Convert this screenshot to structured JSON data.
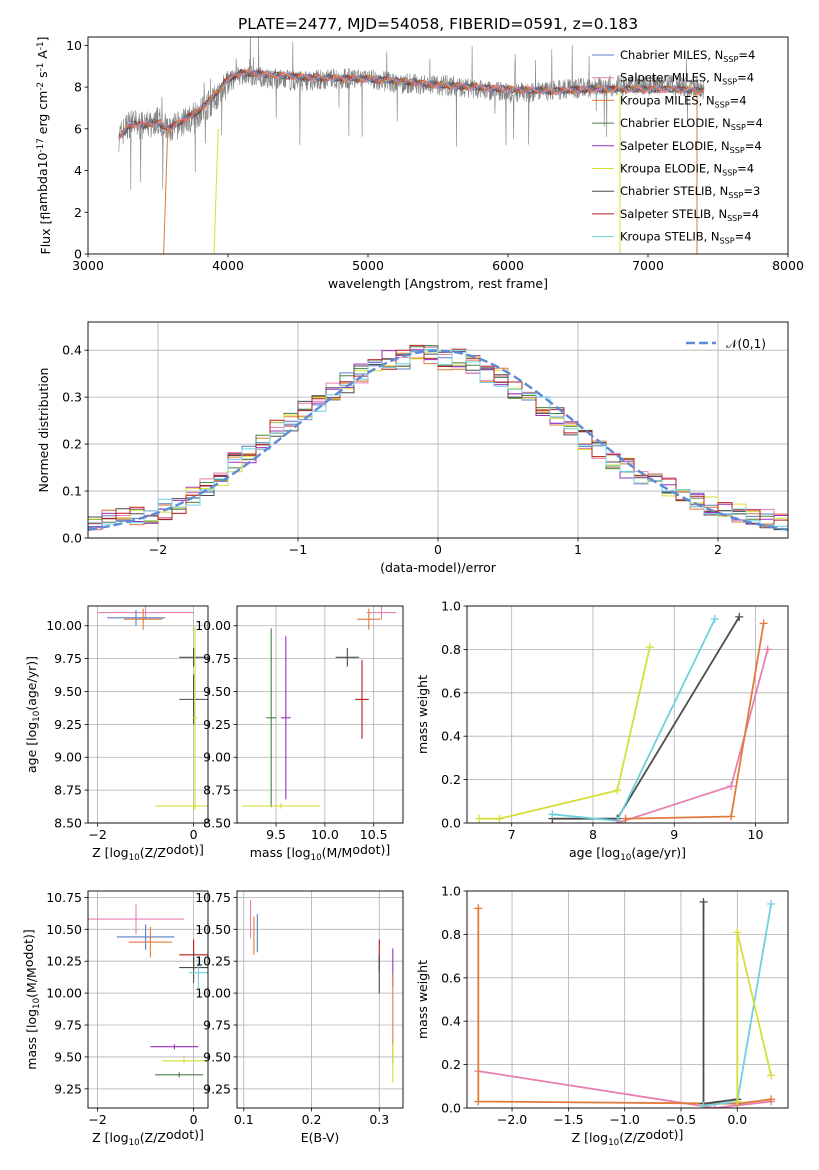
{
  "figure_title": "PLATE=2477, MJD=54058, FIBERID=0591, z=0.183",
  "colors": {
    "Chabrier MILES": "#5a7fc4",
    "Salpeter MILES": "#e87fb1",
    "Kroupa MILES": "#e07b39",
    "Chabrier ELODIE": "#4a7f45",
    "Salpeter ELODIE": "#9b2fbf",
    "Kroupa ELODIE": "#d6df3a",
    "Chabrier STELIB": "#4d4d4d",
    "Salpeter STELIB": "#b81c1c",
    "Kroupa STELIB": "#6fd0e0",
    "data": "#808080",
    "normal": "#5b8bd6"
  },
  "chart_data": [
    {
      "id": "spectrum",
      "type": "line",
      "xlabel": "wavelength [Angstrom, rest frame]",
      "ylabel": "Flux [f$_\\lambda$10$^{-17}$ erg cm$^{-2}$ s$^{-1}$ A$^{-1}$]",
      "xlim": [
        3000,
        8000
      ],
      "ylim": [
        0,
        10.4
      ],
      "xticks": [
        3000,
        4000,
        5000,
        6000,
        7000,
        8000
      ],
      "yticks": [
        0,
        2,
        4,
        6,
        8,
        10
      ],
      "grid": false,
      "legend_position": "right",
      "legend": [
        "Chabrier MILES, N$_{SSP}$=4",
        "Salpeter MILES, N$_{SSP}$=4",
        "Kroupa MILES, N$_{SSP}$=4",
        "Chabrier ELODIE, N$_{SSP}$=4",
        "Salpeter ELODIE, N$_{SSP}$=4",
        "Kroupa ELODIE, N$_{SSP}$=4",
        "Chabrier STELIB, N$_{SSP}$=3",
        "Salpeter STELIB, N$_{SSP}$=4",
        "Kroupa STELIB, N$_{SSP}$=4"
      ],
      "series": [
        {
          "name": "data",
          "x": [
            3220,
            3300,
            3400,
            3500,
            3580,
            3700,
            3800,
            3900,
            4000,
            4100,
            4300,
            4500,
            4800,
            5000,
            5200,
            5500,
            5800,
            6000,
            6300,
            6600,
            6900,
            7200,
            7400
          ],
          "values": [
            5.6,
            6.3,
            6.1,
            6.4,
            5.9,
            6.4,
            6.8,
            7.4,
            8.2,
            8.6,
            8.4,
            8.3,
            8.4,
            8.4,
            8.2,
            8.1,
            7.9,
            7.7,
            7.8,
            8.0,
            8.1,
            8.1,
            7.9
          ]
        },
        {
          "name": "model",
          "x": [
            3220,
            3300,
            3400,
            3500,
            3580,
            3700,
            3800,
            3900,
            4000,
            4100,
            4300,
            4500,
            4800,
            5000,
            5200,
            5500,
            5800,
            6000,
            6300,
            6600,
            6900,
            7200,
            7400
          ],
          "values": [
            5.6,
            6.2,
            6.2,
            6.3,
            6.0,
            6.5,
            6.9,
            7.6,
            8.4,
            8.7,
            8.6,
            8.5,
            8.4,
            8.4,
            8.3,
            8.1,
            8.0,
            7.9,
            7.8,
            7.9,
            7.9,
            7.9,
            7.8
          ]
        }
      ]
    },
    {
      "id": "residuals",
      "type": "histogram",
      "xlabel": "(data-model)/error",
      "ylabel": "Normed distribution",
      "xlim": [
        -2.5,
        2.5
      ],
      "ylim": [
        0,
        0.46
      ],
      "xticks": [
        -2,
        -1,
        0,
        1,
        2
      ],
      "yticks": [
        0.0,
        0.1,
        0.2,
        0.3,
        0.4
      ],
      "grid": true,
      "legend_position": "top-right",
      "legend": [
        "$\\mathcal{N}(0,1)$"
      ],
      "bin_width": 0.1,
      "bins_center": [
        -2.45,
        -2.35,
        -2.25,
        -2.15,
        -2.05,
        -1.95,
        -1.85,
        -1.75,
        -1.65,
        -1.55,
        -1.45,
        -1.35,
        -1.25,
        -1.15,
        -1.05,
        -0.95,
        -0.85,
        -0.75,
        -0.65,
        -0.55,
        -0.45,
        -0.35,
        -0.25,
        -0.15,
        -0.05,
        0.05,
        0.15,
        0.25,
        0.35,
        0.45,
        0.55,
        0.65,
        0.75,
        0.85,
        0.95,
        1.05,
        1.15,
        1.25,
        1.35,
        1.45,
        1.55,
        1.65,
        1.75,
        1.85,
        1.95,
        2.05,
        2.15,
        2.25,
        2.35,
        2.45
      ],
      "envelope_values": [
        0.03,
        0.04,
        0.04,
        0.05,
        0.05,
        0.06,
        0.07,
        0.09,
        0.11,
        0.13,
        0.16,
        0.18,
        0.21,
        0.23,
        0.25,
        0.27,
        0.29,
        0.31,
        0.33,
        0.35,
        0.37,
        0.38,
        0.38,
        0.39,
        0.39,
        0.38,
        0.38,
        0.37,
        0.35,
        0.34,
        0.32,
        0.3,
        0.28,
        0.26,
        0.24,
        0.21,
        0.19,
        0.17,
        0.15,
        0.13,
        0.12,
        0.11,
        0.1,
        0.08,
        0.07,
        0.06,
        0.05,
        0.05,
        0.04,
        0.03
      ],
      "curve": {
        "name": "N(0,1)",
        "mean": 0,
        "sigma": 1
      }
    },
    {
      "id": "age_vs_Z",
      "type": "scatter",
      "xlabel": "Z [log$_{10}$($Z/Z_\\odot$)]",
      "ylabel": "age  [log$_{10}$($age/yr$)]",
      "xlim": [
        -2.2,
        0.3
      ],
      "ylim": [
        8.5,
        10.15
      ],
      "xticks": [
        -2,
        0
      ],
      "yticks": [
        8.5,
        8.75,
        9.0,
        9.25,
        9.5,
        9.75,
        10.0
      ],
      "grid": true,
      "points": [
        {
          "series": "Salpeter MILES",
          "x": -1.0,
          "y": 10.1,
          "xerr": 1.0,
          "yerr": 0.05
        },
        {
          "series": "Chabrier MILES",
          "x": -1.2,
          "y": 10.06,
          "xerr": 0.6,
          "yerr": 0.06
        },
        {
          "series": "Kroupa MILES",
          "x": -1.05,
          "y": 10.05,
          "xerr": 0.4,
          "yerr": 0.08
        },
        {
          "series": "Chabrier STELIB",
          "x": 0.0,
          "y": 9.76,
          "xerr": 0.3,
          "yerr": 0.07
        },
        {
          "series": "Chabrier STELIB",
          "x": 0.0,
          "y": 9.44,
          "xerr": 0.3,
          "yerr": 0.19
        },
        {
          "series": "Kroupa ELODIE",
          "x": 0.0,
          "y": 8.63,
          "xerr": 0.8,
          "yerr": 0.02
        },
        {
          "series": "Kroupa ELODIE",
          "x": 0.03,
          "y": 9.3,
          "xerr": 0.05,
          "yerr": 0.7
        }
      ]
    },
    {
      "id": "age_vs_mass",
      "type": "scatter",
      "xlabel": "mass [log$_{10}$($M/M_\\odot$)]",
      "ylabel": "",
      "xlim": [
        9.1,
        10.8
      ],
      "ylim": [
        8.5,
        10.15
      ],
      "xticks": [
        9.5,
        10.0,
        10.5
      ],
      "yticks": [
        8.5,
        8.75,
        9.0,
        9.25,
        9.5,
        9.75,
        10.0
      ],
      "grid": true,
      "points": [
        {
          "series": "Salpeter MILES",
          "x": 10.58,
          "y": 10.1,
          "xerr": 0.15,
          "yerr": 0.05
        },
        {
          "series": "Kroupa MILES",
          "x": 10.45,
          "y": 10.05,
          "xerr": 0.12,
          "yerr": 0.08
        },
        {
          "series": "Chabrier STELIB",
          "x": 10.23,
          "y": 9.76,
          "xerr": 0.12,
          "yerr": 0.07
        },
        {
          "series": "Salpeter STELIB",
          "x": 10.38,
          "y": 9.44,
          "xerr": 0.07,
          "yerr": 0.3
        },
        {
          "series": "Chabrier ELODIE",
          "x": 9.45,
          "y": 9.3,
          "xerr": 0.05,
          "yerr": 0.68
        },
        {
          "series": "Salpeter ELODIE",
          "x": 9.6,
          "y": 9.3,
          "xerr": 0.05,
          "yerr": 0.62
        },
        {
          "series": "Kroupa ELODIE",
          "x": 9.55,
          "y": 8.63,
          "xerr": 0.4,
          "yerr": 0.02
        }
      ]
    },
    {
      "id": "weight_vs_age",
      "type": "line",
      "xlabel": "age  [log$_{10}$($age/yr$)]",
      "ylabel": "mass weight",
      "xlim": [
        6.45,
        10.4
      ],
      "ylim": [
        0,
        1.0
      ],
      "xticks": [
        7,
        8,
        9,
        10
      ],
      "yticks": [
        0.0,
        0.2,
        0.4,
        0.6,
        0.8,
        1.0
      ],
      "grid": true,
      "series": [
        {
          "name": "Kroupa ELODIE",
          "x": [
            6.6,
            6.85,
            8.3,
            8.7
          ],
          "values": [
            0.02,
            0.02,
            0.15,
            0.81
          ]
        },
        {
          "name": "Chabrier STELIB",
          "x": [
            7.5,
            8.3,
            9.8
          ],
          "values": [
            0.02,
            0.02,
            0.95
          ]
        },
        {
          "name": "Kroupa STELIB",
          "x": [
            7.5,
            8.3,
            9.5
          ],
          "values": [
            0.04,
            0.01,
            0.94
          ]
        },
        {
          "name": "Salpeter MILES",
          "x": [
            8.3,
            9.7,
            10.15
          ],
          "values": [
            0.0,
            0.17,
            0.8
          ]
        },
        {
          "name": "Kroupa MILES",
          "x": [
            8.4,
            9.7,
            10.1
          ],
          "values": [
            0.02,
            0.03,
            0.92
          ]
        }
      ]
    },
    {
      "id": "mass_vs_Z",
      "type": "scatter",
      "xlabel": "Z [log$_{10}$($Z/Z_\\odot$)]",
      "ylabel": "mass [log$_{10}$($M/M_\\odot$)]",
      "xlim": [
        -2.2,
        0.3
      ],
      "ylim": [
        9.1,
        10.8
      ],
      "xticks": [
        -2,
        0
      ],
      "yticks": [
        9.25,
        9.5,
        9.75,
        10.0,
        10.25,
        10.5,
        10.75
      ],
      "grid": true,
      "points": [
        {
          "series": "Salpeter MILES",
          "x": -1.2,
          "y": 10.58,
          "xerr": 1.0,
          "yerr": 0.12
        },
        {
          "series": "Chabrier MILES",
          "x": -1.0,
          "y": 10.44,
          "xerr": 0.6,
          "yerr": 0.1
        },
        {
          "series": "Kroupa MILES",
          "x": -0.9,
          "y": 10.4,
          "xerr": 0.45,
          "yerr": 0.12
        },
        {
          "series": "Salpeter STELIB",
          "x": 0.0,
          "y": 10.3,
          "xerr": 0.3,
          "yerr": 0.12
        },
        {
          "series": "Chabrier STELIB",
          "x": 0.0,
          "y": 10.2,
          "xerr": 0.3,
          "yerr": 0.12
        },
        {
          "series": "Kroupa STELIB",
          "x": 0.1,
          "y": 10.16,
          "xerr": 0.2,
          "yerr": 0.12
        },
        {
          "series": "Salpeter ELODIE",
          "x": -0.4,
          "y": 9.58,
          "xerr": 0.5,
          "yerr": 0.02
        },
        {
          "series": "Kroupa ELODIE",
          "x": -0.2,
          "y": 9.47,
          "xerr": 0.45,
          "yerr": 0.02
        },
        {
          "series": "Chabrier ELODIE",
          "x": -0.3,
          "y": 9.36,
          "xerr": 0.5,
          "yerr": 0.02
        }
      ]
    },
    {
      "id": "mass_vs_EBV",
      "type": "scatter",
      "xlabel": "E(B-V)",
      "ylabel": "",
      "xlim": [
        0.09,
        0.335
      ],
      "ylim": [
        9.1,
        10.8
      ],
      "xticks": [
        0.1,
        0.2,
        0.3
      ],
      "yticks": [
        9.25,
        9.5,
        9.75,
        10.0,
        10.25,
        10.5,
        10.75
      ],
      "grid": true,
      "points": [
        {
          "series": "Salpeter MILES",
          "x": 0.11,
          "y": 10.58,
          "yerr": 0.15
        },
        {
          "series": "Kroupa MILES",
          "x": 0.115,
          "y": 10.45,
          "yerr": 0.15
        },
        {
          "series": "Chabrier MILES",
          "x": 0.12,
          "y": 10.47,
          "yerr": 0.15
        },
        {
          "series": "Salpeter STELIB",
          "x": 0.3,
          "y": 10.3,
          "yerr": 0.12
        },
        {
          "series": "Chabrier STELIB",
          "x": 0.3,
          "y": 10.15,
          "yerr": 0.15
        },
        {
          "series": "Salpeter ELODIE",
          "x": 0.32,
          "y": 10.2,
          "yerr": 0.15
        },
        {
          "series": "Kroupa MILES",
          "x": 0.32,
          "y": 9.8,
          "yerr": 0.35
        },
        {
          "series": "Kroupa ELODIE",
          "x": 0.32,
          "y": 9.45,
          "yerr": 0.15
        }
      ]
    },
    {
      "id": "weight_vs_Z",
      "type": "line",
      "xlabel": "Z [log$_{10}$($Z/Z_\\odot$)]",
      "ylabel": "mass weight",
      "xlim": [
        -2.4,
        0.45
      ],
      "ylim": [
        0,
        1.0
      ],
      "xticks": [
        -2.0,
        -1.5,
        -1.0,
        -0.5,
        0.0
      ],
      "yticks": [
        0.0,
        0.2,
        0.4,
        0.6,
        0.8,
        1.0
      ],
      "grid": true,
      "series": [
        {
          "name": "Salpeter MILES",
          "x": [
            -2.3,
            -0.2,
            0.3
          ],
          "values": [
            0.17,
            0.0,
            0.03
          ]
        },
        {
          "name": "Kroupa MILES",
          "x": [
            -2.3,
            -2.3,
            0.0,
            0.3
          ],
          "values": [
            0.92,
            0.03,
            0.02,
            0.04
          ]
        },
        {
          "name": "Chabrier STELIB",
          "x": [
            -0.3,
            -0.3,
            0.0
          ],
          "values": [
            0.95,
            0.02,
            0.04
          ]
        },
        {
          "name": "Kroupa STELIB",
          "x": [
            -0.3,
            0.0,
            0.3
          ],
          "values": [
            0.01,
            0.03,
            0.94
          ]
        },
        {
          "name": "Kroupa ELODIE",
          "x": [
            0.0,
            0.0,
            0.3
          ],
          "values": [
            0.03,
            0.81,
            0.15
          ]
        }
      ]
    }
  ]
}
